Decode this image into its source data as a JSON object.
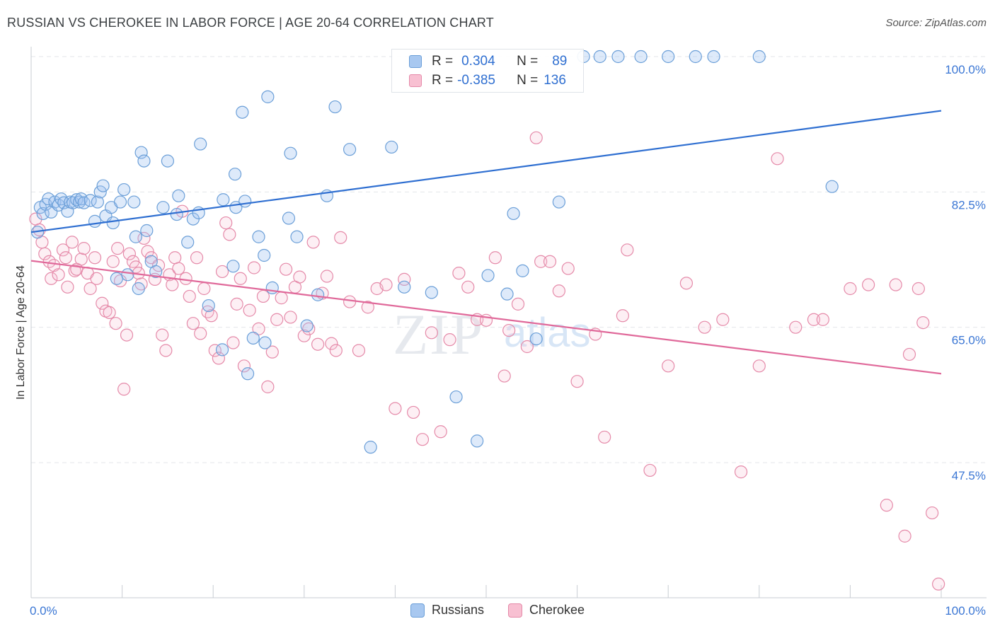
{
  "header": {
    "title": "RUSSIAN VS CHEROKEE IN LABOR FORCE | AGE 20-64 CORRELATION CHART",
    "source": "Source: ZipAtlas.com"
  },
  "watermark": {
    "text_zip": "ZIP",
    "text_atlas": "atlas"
  },
  "stats_box": {
    "rows": [
      {
        "r_label": "R =",
        "r_value": "0.304",
        "n_label": "N =",
        "n_value": "89",
        "color": "#a8c8f0",
        "border": "#6b9fd8"
      },
      {
        "r_label": "R =",
        "r_value": "-0.385",
        "n_label": "N =",
        "n_value": "136",
        "color": "#f8c0d2",
        "border": "#e58aa9"
      }
    ]
  },
  "legend": {
    "items": [
      {
        "label": "Russians",
        "color": "#a8c8f0",
        "border": "#6b9fd8"
      },
      {
        "label": "Cherokee",
        "color": "#f8c0d2",
        "border": "#e58aa9"
      }
    ]
  },
  "chart_data": {
    "type": "scatter",
    "title": "RUSSIAN VS CHEROKEE IN LABOR FORCE | AGE 20-64 CORRELATION CHART",
    "xlabel": "",
    "ylabel": "In Labor Force | Age 20-64",
    "xlim": [
      0,
      1
    ],
    "ylim": [
      0.28,
      1.02
    ],
    "x_tick_labels": [
      "0.0%",
      "100.0%"
    ],
    "y_ticks": [
      1.0,
      0.825,
      0.65,
      0.475
    ],
    "y_tick_labels": [
      "100.0%",
      "82.5%",
      "65.0%",
      "47.5%"
    ],
    "grid": "horizontal dashed",
    "legend_position": "bottom-center",
    "colors": {
      "Russians": "#6b9fd8",
      "Cherokee": "#e58aa9",
      "russians_line": "#2f6fd1",
      "cherokee_line": "#e0699a",
      "axis_label": "#3a76d4"
    },
    "series": [
      {
        "name": "Russians",
        "trend": {
          "x": [
            0,
            1
          ],
          "y": [
            0.773,
            0.93
          ]
        },
        "points": [
          [
            0.007,
            0.773
          ],
          [
            0.01,
            0.805
          ],
          [
            0.013,
            0.797
          ],
          [
            0.016,
            0.809
          ],
          [
            0.019,
            0.816
          ],
          [
            0.022,
            0.799
          ],
          [
            0.026,
            0.812
          ],
          [
            0.03,
            0.808
          ],
          [
            0.033,
            0.816
          ],
          [
            0.036,
            0.811
          ],
          [
            0.04,
            0.8
          ],
          [
            0.043,
            0.812
          ],
          [
            0.046,
            0.811
          ],
          [
            0.05,
            0.815
          ],
          [
            0.053,
            0.812
          ],
          [
            0.055,
            0.816
          ],
          [
            0.058,
            0.811
          ],
          [
            0.065,
            0.814
          ],
          [
            0.07,
            0.787
          ],
          [
            0.073,
            0.812
          ],
          [
            0.076,
            0.825
          ],
          [
            0.079,
            0.833
          ],
          [
            0.082,
            0.794
          ],
          [
            0.088,
            0.805
          ],
          [
            0.09,
            0.785
          ],
          [
            0.094,
            0.713
          ],
          [
            0.098,
            0.812
          ],
          [
            0.102,
            0.828
          ],
          [
            0.106,
            0.718
          ],
          [
            0.113,
            0.812
          ],
          [
            0.115,
            0.767
          ],
          [
            0.118,
            0.7
          ],
          [
            0.121,
            0.876
          ],
          [
            0.124,
            0.865
          ],
          [
            0.127,
            0.775
          ],
          [
            0.132,
            0.735
          ],
          [
            0.137,
            0.722
          ],
          [
            0.145,
            0.805
          ],
          [
            0.15,
            0.865
          ],
          [
            0.16,
            0.796
          ],
          [
            0.162,
            0.82
          ],
          [
            0.172,
            0.76
          ],
          [
            0.178,
            0.79
          ],
          [
            0.184,
            0.798
          ],
          [
            0.186,
            0.887
          ],
          [
            0.195,
            0.678
          ],
          [
            0.21,
            0.621
          ],
          [
            0.211,
            0.815
          ],
          [
            0.224,
            0.848
          ],
          [
            0.222,
            0.729
          ],
          [
            0.225,
            0.805
          ],
          [
            0.232,
            0.928
          ],
          [
            0.235,
            0.813
          ],
          [
            0.238,
            0.59
          ],
          [
            0.244,
            0.636
          ],
          [
            0.25,
            0.767
          ],
          [
            0.256,
            0.743
          ],
          [
            0.257,
            0.63
          ],
          [
            0.26,
            0.948
          ],
          [
            0.265,
            0.701
          ],
          [
            0.283,
            0.791
          ],
          [
            0.285,
            0.875
          ],
          [
            0.292,
            0.767
          ],
          [
            0.303,
            0.652
          ],
          [
            0.315,
            0.692
          ],
          [
            0.325,
            0.82
          ],
          [
            0.334,
            0.935
          ],
          [
            0.35,
            0.88
          ],
          [
            0.373,
            0.495
          ],
          [
            0.396,
            0.883
          ],
          [
            0.41,
            0.702
          ],
          [
            0.44,
            0.695
          ],
          [
            0.467,
            0.56
          ],
          [
            0.49,
            0.503
          ],
          [
            0.502,
            0.717
          ],
          [
            0.523,
            0.693
          ],
          [
            0.53,
            0.797
          ],
          [
            0.54,
            0.723
          ],
          [
            0.555,
            0.635
          ],
          [
            0.58,
            0.812
          ],
          [
            0.607,
            1.0
          ],
          [
            0.625,
            1.0
          ],
          [
            0.645,
            1.0
          ],
          [
            0.67,
            1.0
          ],
          [
            0.7,
            1.0
          ],
          [
            0.73,
            1.0
          ],
          [
            0.75,
            1.0
          ],
          [
            0.8,
            1.0
          ],
          [
            0.88,
            0.832
          ]
        ]
      },
      {
        "name": "Cherokee",
        "trend": {
          "x": [
            0,
            1
          ],
          "y": [
            0.736,
            0.59
          ]
        },
        "points": [
          [
            0.005,
            0.79
          ],
          [
            0.009,
            0.776
          ],
          [
            0.012,
            0.76
          ],
          [
            0.015,
            0.745
          ],
          [
            0.02,
            0.735
          ],
          [
            0.022,
            0.713
          ],
          [
            0.025,
            0.73
          ],
          [
            0.03,
            0.718
          ],
          [
            0.035,
            0.75
          ],
          [
            0.038,
            0.74
          ],
          [
            0.04,
            0.702
          ],
          [
            0.045,
            0.76
          ],
          [
            0.048,
            0.723
          ],
          [
            0.05,
            0.725
          ],
          [
            0.055,
            0.738
          ],
          [
            0.058,
            0.752
          ],
          [
            0.062,
            0.72
          ],
          [
            0.065,
            0.7
          ],
          [
            0.07,
            0.74
          ],
          [
            0.072,
            0.713
          ],
          [
            0.078,
            0.681
          ],
          [
            0.082,
            0.671
          ],
          [
            0.086,
            0.669
          ],
          [
            0.09,
            0.735
          ],
          [
            0.093,
            0.655
          ],
          [
            0.095,
            0.752
          ],
          [
            0.098,
            0.71
          ],
          [
            0.102,
            0.57
          ],
          [
            0.105,
            0.64
          ],
          [
            0.108,
            0.745
          ],
          [
            0.112,
            0.735
          ],
          [
            0.115,
            0.728
          ],
          [
            0.118,
            0.72
          ],
          [
            0.121,
            0.706
          ],
          [
            0.124,
            0.765
          ],
          [
            0.128,
            0.748
          ],
          [
            0.132,
            0.74
          ],
          [
            0.136,
            0.712
          ],
          [
            0.14,
            0.73
          ],
          [
            0.144,
            0.64
          ],
          [
            0.148,
            0.62
          ],
          [
            0.152,
            0.718
          ],
          [
            0.155,
            0.705
          ],
          [
            0.158,
            0.74
          ],
          [
            0.162,
            0.726
          ],
          [
            0.166,
            0.8
          ],
          [
            0.17,
            0.713
          ],
          [
            0.174,
            0.69
          ],
          [
            0.178,
            0.655
          ],
          [
            0.182,
            0.74
          ],
          [
            0.186,
            0.642
          ],
          [
            0.19,
            0.7
          ],
          [
            0.194,
            0.67
          ],
          [
            0.198,
            0.665
          ],
          [
            0.202,
            0.62
          ],
          [
            0.206,
            0.61
          ],
          [
            0.21,
            0.722
          ],
          [
            0.214,
            0.785
          ],
          [
            0.218,
            0.77
          ],
          [
            0.222,
            0.63
          ],
          [
            0.226,
            0.68
          ],
          [
            0.23,
            0.713
          ],
          [
            0.234,
            0.6
          ],
          [
            0.24,
            0.672
          ],
          [
            0.245,
            0.727
          ],
          [
            0.25,
            0.648
          ],
          [
            0.255,
            0.69
          ],
          [
            0.26,
            0.573
          ],
          [
            0.265,
            0.618
          ],
          [
            0.27,
            0.66
          ],
          [
            0.275,
            0.688
          ],
          [
            0.28,
            0.725
          ],
          [
            0.285,
            0.663
          ],
          [
            0.29,
            0.702
          ],
          [
            0.295,
            0.715
          ],
          [
            0.3,
            0.639
          ],
          [
            0.305,
            0.648
          ],
          [
            0.31,
            0.76
          ],
          [
            0.315,
            0.628
          ],
          [
            0.32,
            0.694
          ],
          [
            0.325,
            0.716
          ],
          [
            0.33,
            0.629
          ],
          [
            0.335,
            0.62
          ],
          [
            0.34,
            0.766
          ],
          [
            0.35,
            0.683
          ],
          [
            0.36,
            0.62
          ],
          [
            0.37,
            0.676
          ],
          [
            0.38,
            0.7
          ],
          [
            0.39,
            0.705
          ],
          [
            0.4,
            0.545
          ],
          [
            0.41,
            0.712
          ],
          [
            0.42,
            0.54
          ],
          [
            0.43,
            0.505
          ],
          [
            0.44,
            0.643
          ],
          [
            0.45,
            0.515
          ],
          [
            0.46,
            0.634
          ],
          [
            0.47,
            0.72
          ],
          [
            0.48,
            0.702
          ],
          [
            0.49,
            0.66
          ],
          [
            0.5,
            0.659
          ],
          [
            0.51,
            0.74
          ],
          [
            0.52,
            0.587
          ],
          [
            0.525,
            0.646
          ],
          [
            0.535,
            0.68
          ],
          [
            0.545,
            0.625
          ],
          [
            0.555,
            0.895
          ],
          [
            0.56,
            0.735
          ],
          [
            0.57,
            0.735
          ],
          [
            0.58,
            0.697
          ],
          [
            0.59,
            0.726
          ],
          [
            0.6,
            0.58
          ],
          [
            0.62,
            0.641
          ],
          [
            0.63,
            0.508
          ],
          [
            0.65,
            0.665
          ],
          [
            0.68,
            0.465
          ],
          [
            0.7,
            0.6
          ],
          [
            0.72,
            0.707
          ],
          [
            0.74,
            0.65
          ],
          [
            0.76,
            0.66
          ],
          [
            0.78,
            0.463
          ],
          [
            0.8,
            0.6
          ],
          [
            0.82,
            0.868
          ],
          [
            0.84,
            0.65
          ],
          [
            0.86,
            0.66
          ],
          [
            0.87,
            0.66
          ],
          [
            0.9,
            0.7
          ],
          [
            0.92,
            0.705
          ],
          [
            0.94,
            0.42
          ],
          [
            0.96,
            0.38
          ],
          [
            0.965,
            0.615
          ],
          [
            0.98,
            0.656
          ],
          [
            0.99,
            0.41
          ],
          [
            0.997,
            0.318
          ],
          [
            0.975,
            0.7
          ],
          [
            0.95,
            0.705
          ],
          [
            0.655,
            0.75
          ]
        ]
      }
    ]
  }
}
